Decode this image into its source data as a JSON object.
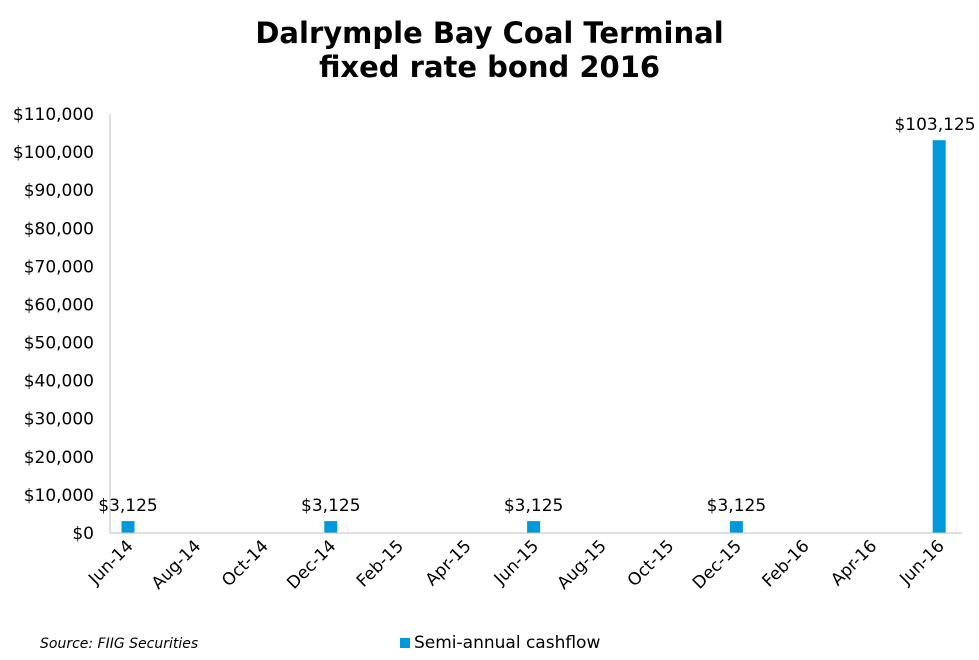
{
  "chart_data": {
    "type": "bar",
    "title": [
      "Dalrymple Bay Coal Terminal",
      "fixed rate bond 2016"
    ],
    "y_ticks": [
      "$0",
      "$10,000",
      "$20,000",
      "$30,000",
      "$40,000",
      "$50,000",
      "$60,000",
      "$70,000",
      "$80,000",
      "$90,000",
      "$100,000",
      "$110,000"
    ],
    "ylim": [
      0,
      110000
    ],
    "x_ticks": [
      "Jun-14",
      "Aug-14",
      "Oct-14",
      "Dec-14",
      "Feb-15",
      "Apr-15",
      "Jun-15",
      "Aug-15",
      "Oct-15",
      "Dec-15",
      "Feb-16",
      "Apr-16",
      "Jun-16"
    ],
    "series": [
      {
        "name": "Semi-annual cashflow",
        "color": "#0099db",
        "points": [
          {
            "x": "Jun-14",
            "value": 3125,
            "label": "$3,125"
          },
          {
            "x": "Dec-14",
            "value": 3125,
            "label": "$3,125"
          },
          {
            "x": "Jun-15",
            "value": 3125,
            "label": "$3,125"
          },
          {
            "x": "Dec-15",
            "value": 3125,
            "label": "$3,125"
          },
          {
            "x": "Jun-16",
            "value": 103125,
            "label": "$103,125"
          }
        ]
      }
    ],
    "grid": false,
    "legend_position": "bottom"
  },
  "source": "Source: FIIG Securities"
}
